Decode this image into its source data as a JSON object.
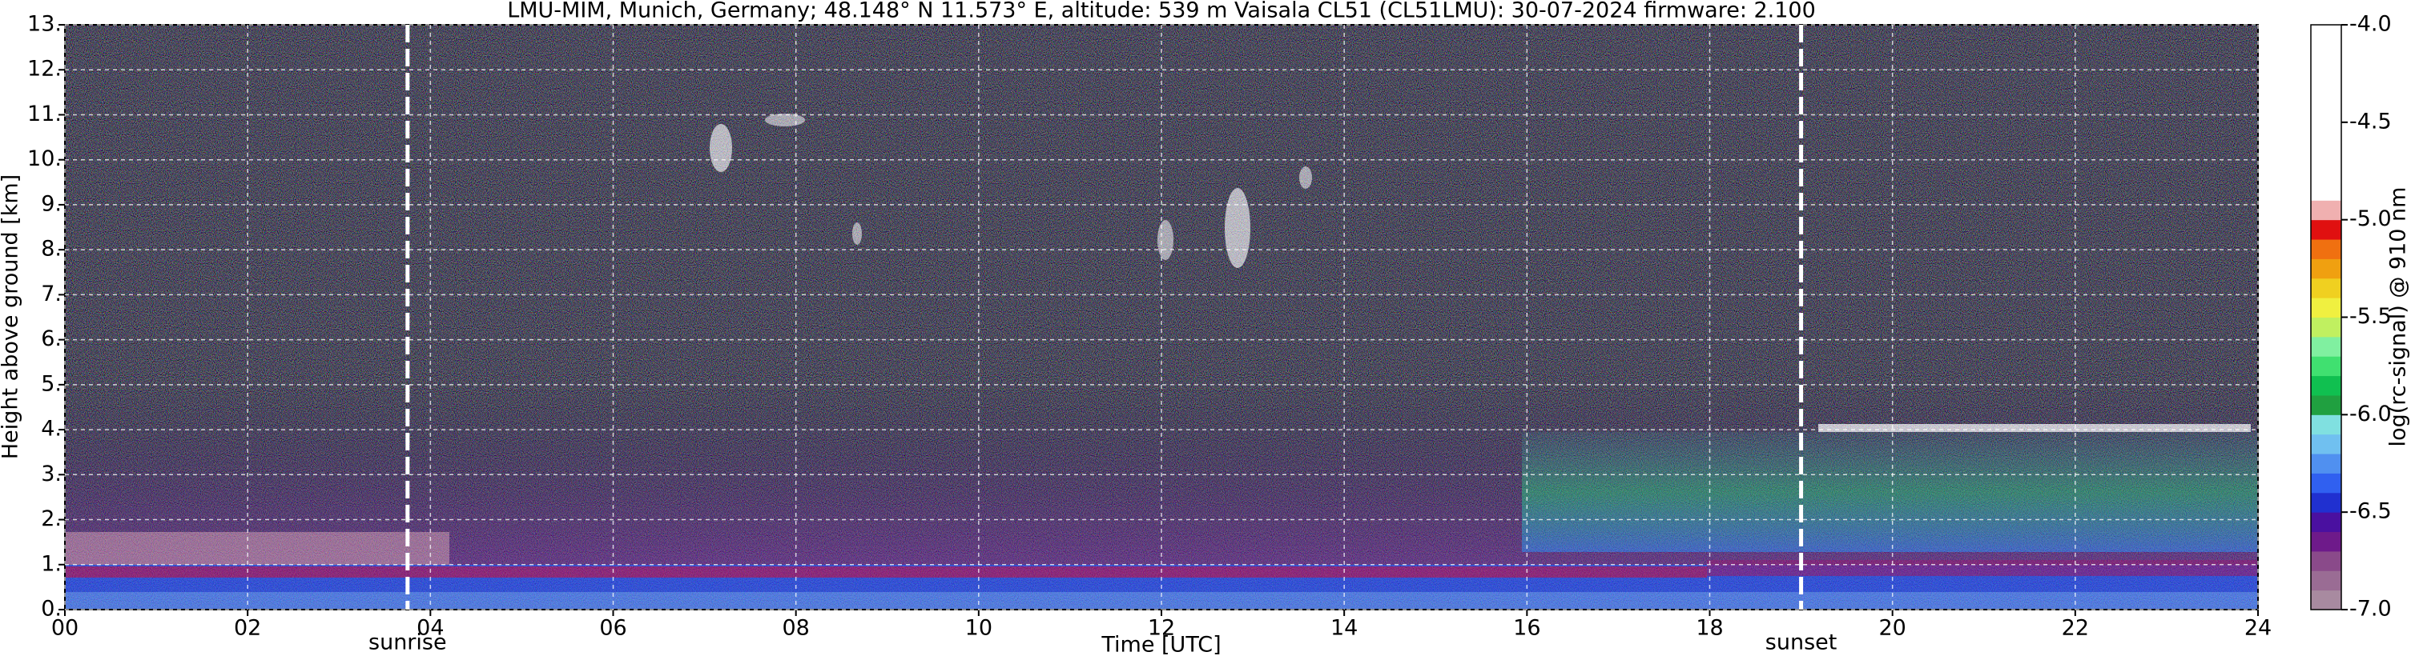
{
  "chart_data": {
    "type": "heatmap",
    "title": "LMU-MIM, Munich, Germany; 48.148° N 11.573° E, altitude: 539 m    Vaisala CL51 (CL51LMU): 30-07-2024    firmware: 2.100",
    "x_label": "Time [UTC]",
    "y_label": "Height above ground [km]",
    "xlim": [
      0,
      24
    ],
    "xticks": [
      {
        "value": 0,
        "label": "00"
      },
      {
        "value": 2,
        "label": "02"
      },
      {
        "value": 4,
        "label": "04"
      },
      {
        "value": 6,
        "label": "06"
      },
      {
        "value": 8,
        "label": "08"
      },
      10,
      12,
      14,
      16,
      18,
      20,
      22,
      24
    ],
    "ylim": [
      0,
      13
    ],
    "yticks": [
      {
        "value": 0,
        "label": "0."
      },
      {
        "value": 1,
        "label": "1."
      },
      {
        "value": 2,
        "label": "2."
      },
      {
        "value": 3,
        "label": "3."
      },
      {
        "value": 4,
        "label": "4."
      },
      {
        "value": 5,
        "label": "5."
      },
      {
        "value": 6,
        "label": "6."
      },
      {
        "value": 7,
        "label": "7."
      },
      {
        "value": 8,
        "label": "8."
      },
      {
        "value": 9,
        "label": "9."
      },
      {
        "value": 10,
        "label": "10."
      },
      {
        "value": 11,
        "label": "11."
      },
      {
        "value": 12,
        "label": "12."
      },
      {
        "value": 13,
        "label": "13."
      }
    ],
    "grid": true,
    "annotations": [
      {
        "label": "sunrise",
        "x": 3.75
      },
      {
        "label": "sunset",
        "x": 19.0
      }
    ],
    "colorbar": {
      "label": "log(rc-signal) @ 910 nm",
      "lim": [
        -7,
        -4
      ],
      "ticks": [
        {
          "value": -4,
          "label": "-4.0"
        },
        -4.5,
        {
          "value": -5,
          "label": "-5.0"
        },
        -5.5,
        {
          "value": -6,
          "label": "-6.0"
        },
        -6.5,
        {
          "value": -7,
          "label": "-7.0"
        }
      ],
      "colors": [
        "#a88aa0",
        "#9a6c94",
        "#8a4a8a",
        "#6e1a8a",
        "#4a10a0",
        "#2030d0",
        "#3060f0",
        "#5090f0",
        "#70c0f0",
        "#80e0e0",
        "#20a040",
        "#10c050",
        "#40e070",
        "#80f0a0",
        "#c0f060",
        "#f0f040",
        "#f0d020",
        "#f0a010",
        "#f07010",
        "#e01010",
        "#f0b0b0",
        "#ffffff",
        "#ffffff",
        "#ffffff",
        "#ffffff",
        "#ffffff",
        "#ffffff",
        "#ffffff",
        "#ffffff",
        "#ffffff"
      ]
    }
  }
}
